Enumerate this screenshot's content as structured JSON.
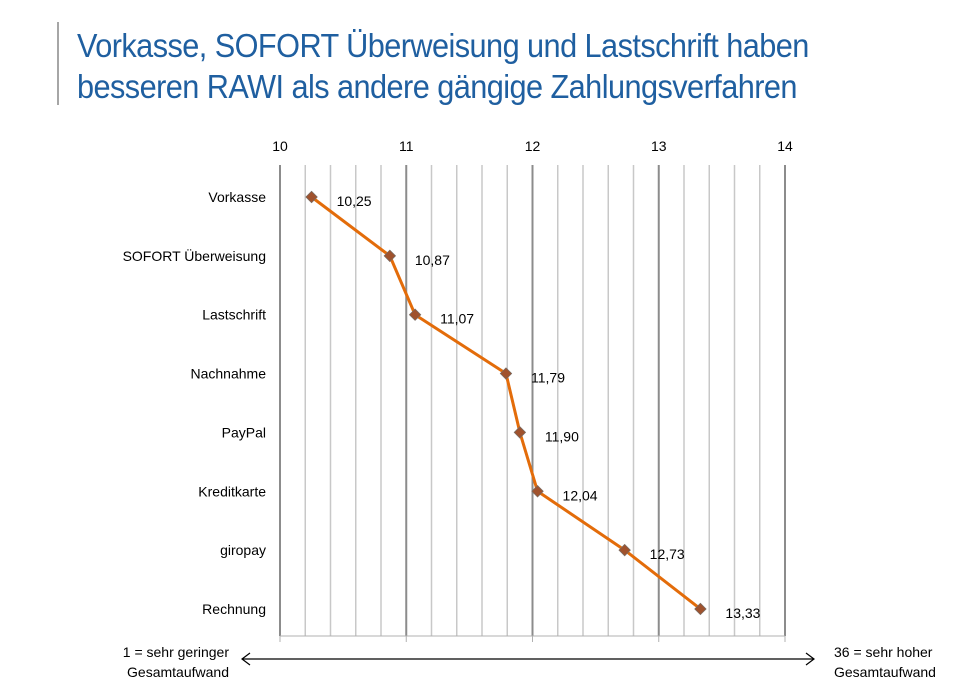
{
  "title_lines": [
    "Vorkasse, SOFORT Überweisung und Lastschrift haben",
    "besseren RAWI als andere gängige Zahlungsverfahren"
  ],
  "chart_data": {
    "type": "line",
    "title": "Vorkasse, SOFORT Überweisung und Lastschrift haben besseren RAWI als andere gängige Zahlungsverfahren",
    "categories": [
      "Vorkasse",
      "SOFORT Überweisung",
      "Lastschrift",
      "Nachnahme",
      "PayPal",
      "Kreditkarte",
      "giropay",
      "Rechnung"
    ],
    "values": [
      10.25,
      10.87,
      11.07,
      11.79,
      11.9,
      12.04,
      12.73,
      13.33
    ],
    "data_labels": [
      "10,25",
      "10,87",
      "11,07",
      "11,79",
      "11,90",
      "12,04",
      "12,73",
      "13,33"
    ],
    "xlim": [
      10,
      14
    ],
    "xticks": [
      "10",
      "11",
      "12",
      "13",
      "14"
    ],
    "minor_step": 0.2,
    "grid": true,
    "line_color": "#e36c0a",
    "marker_color": "#a0522d",
    "scale_left_label": [
      "1 = sehr geringer",
      "Gesamtaufwand"
    ],
    "scale_right_label": [
      "36 = sehr hoher",
      "Gesamtaufwand"
    ]
  }
}
